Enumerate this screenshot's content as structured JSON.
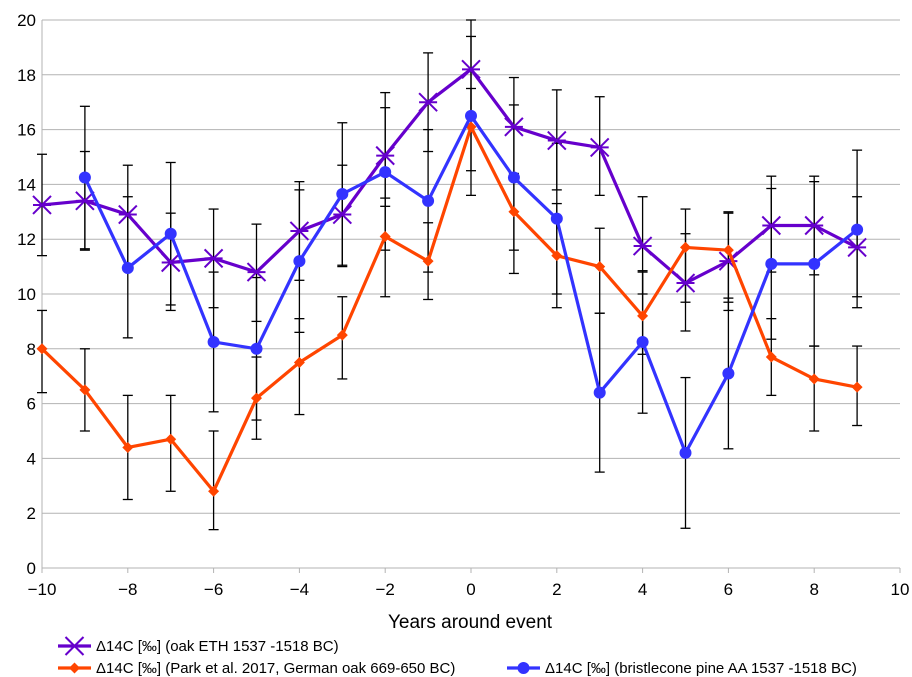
{
  "chart_data": {
    "type": "line",
    "title": "",
    "xlabel": "Years around event",
    "ylabel": "",
    "xlim": [
      -10,
      10
    ],
    "ylim": [
      0,
      20
    ],
    "x_ticks": [
      -10,
      -8,
      -6,
      -4,
      -2,
      0,
      2,
      4,
      6,
      8,
      10
    ],
    "x_tick_labels": [
      "−10",
      "−8",
      "−6",
      "−4",
      "−2",
      "0",
      "2",
      "4",
      "6",
      "8",
      "10"
    ],
    "y_ticks": [
      0,
      2,
      4,
      6,
      8,
      10,
      12,
      14,
      16,
      18,
      20
    ],
    "y_tick_labels": [
      "0",
      "2",
      "4",
      "6",
      "8",
      "10",
      "12",
      "14",
      "16",
      "18",
      "20"
    ],
    "grid": "horizontal",
    "legend_position": "bottom",
    "series": [
      {
        "name": "Δ14C [‰] (oak ETH 1537 -1518 BC)",
        "color": "#6600cc",
        "marker": "asterisk",
        "x": [
          -10,
          -9,
          -8,
          -7,
          -6,
          -5,
          -4,
          -3,
          -2,
          -1,
          0,
          1,
          2,
          3,
          4,
          5,
          6,
          7,
          8,
          9
        ],
        "y": [
          13.25,
          13.4,
          12.9,
          11.15,
          11.3,
          10.8,
          12.3,
          12.9,
          15.05,
          17.0,
          18.2,
          16.1,
          15.6,
          15.35,
          11.75,
          10.4,
          11.2,
          12.5,
          12.5,
          11.7
        ],
        "err_low": [
          11.4,
          11.6,
          11.0,
          9.4,
          9.5,
          9.0,
          10.5,
          11.0,
          13.2,
          15.2,
          16.4,
          14.3,
          13.8,
          13.6,
          10.0,
          8.65,
          9.4,
          10.8,
          10.7,
          9.9
        ],
        "err_high": [
          15.1,
          15.2,
          14.7,
          12.95,
          13.1,
          12.55,
          14.1,
          14.7,
          16.8,
          18.8,
          20.0,
          17.9,
          17.45,
          17.2,
          13.55,
          12.2,
          12.95,
          14.3,
          14.3,
          13.55
        ]
      },
      {
        "name": "Δ14C [‰] (Park et al. 2017, German oak 669-650 BC)",
        "color": "#ff4500",
        "marker": "diamond",
        "x": [
          -10,
          -9,
          -8,
          -7,
          -6,
          -5,
          -4,
          -3,
          -2,
          -1,
          0,
          1,
          2,
          3,
          4,
          5,
          6,
          7,
          8,
          9
        ],
        "y": [
          8.0,
          6.5,
          4.4,
          4.7,
          2.8,
          6.2,
          7.5,
          8.5,
          12.1,
          11.2,
          16.1,
          13.0,
          11.4,
          11.0,
          9.2,
          11.7,
          11.6,
          7.7,
          6.9,
          6.6
        ],
        "err_low": [
          6.4,
          5.0,
          2.5,
          2.8,
          1.4,
          4.7,
          5.6,
          6.9,
          9.9,
          9.8,
          14.5,
          10.75,
          9.5,
          9.3,
          7.8,
          9.7,
          9.7,
          6.3,
          5.0,
          5.2
        ],
        "err_high": [
          9.4,
          8.0,
          6.3,
          6.3,
          5.0,
          7.7,
          9.1,
          9.9,
          13.5,
          12.6,
          17.5,
          14.4,
          13.3,
          12.4,
          10.8,
          13.1,
          13.0,
          9.1,
          8.1,
          8.1
        ]
      },
      {
        "name": "Δ14C [‰] (bristlecone pine AA 1537 -1518 BC)",
        "color": "#3333ff",
        "marker": "circle",
        "x": [
          -9,
          -8,
          -7,
          -6,
          -5,
          -4,
          -3,
          -2,
          -1,
          0,
          1,
          2,
          3,
          4,
          5,
          6,
          7,
          8,
          9
        ],
        "y": [
          14.25,
          10.95,
          12.2,
          8.25,
          8.0,
          11.2,
          13.65,
          14.45,
          13.4,
          16.5,
          14.25,
          12.75,
          6.4,
          8.25,
          4.2,
          7.1,
          11.1,
          11.1,
          12.35
        ],
        "err_low": [
          11.65,
          8.4,
          9.6,
          5.7,
          5.4,
          8.6,
          11.05,
          11.6,
          10.8,
          13.6,
          11.6,
          10.0,
          3.5,
          5.65,
          1.45,
          4.35,
          8.35,
          8.1,
          9.5
        ],
        "err_high": [
          16.85,
          13.55,
          14.8,
          10.8,
          10.6,
          13.8,
          16.25,
          17.35,
          16.0,
          19.4,
          16.9,
          15.5,
          9.3,
          10.85,
          6.95,
          9.85,
          13.85,
          14.1,
          15.25
        ]
      }
    ]
  }
}
